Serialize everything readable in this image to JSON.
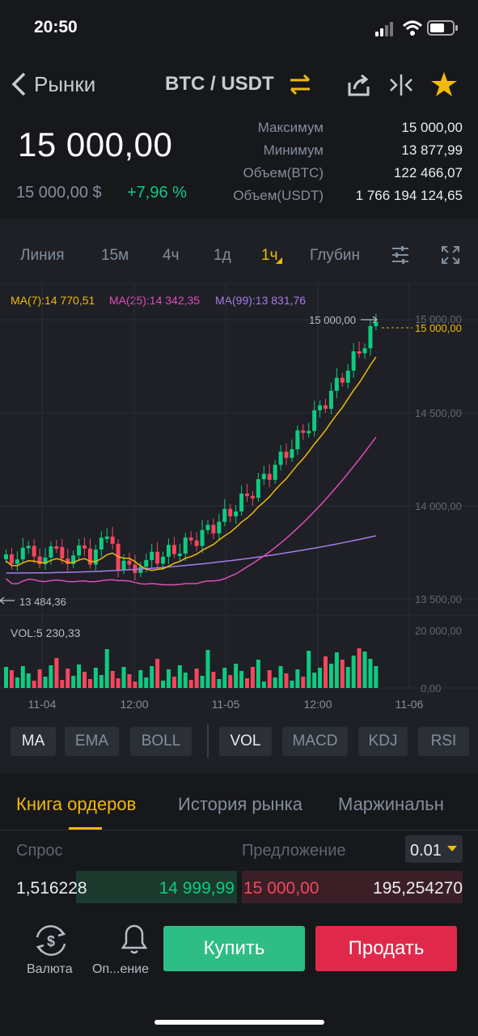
{
  "status_bar": {
    "time": "20:50"
  },
  "nav": {
    "back_label": "Рынки",
    "pair": "BTC / USDT"
  },
  "ticker": {
    "price": "15 000,00",
    "price_usd": "15 000,00 $",
    "change": "+7,96 %",
    "stats": [
      {
        "label": "Максимум",
        "value": "15 000,00"
      },
      {
        "label": "Минимум",
        "value": "13 877,99"
      },
      {
        "label": "Объем(BTC)",
        "value": "122 466,07"
      },
      {
        "label": "Объем(USDT)",
        "value": "1 766 194 124,65"
      }
    ]
  },
  "intervals": [
    "Линия",
    "15м",
    "4ч",
    "1д",
    "1ч",
    "Глубин"
  ],
  "active_interval": "1ч",
  "ma_legend": {
    "ma7": "MA(7):14 770,51",
    "ma25": "MA(25):14 342,35",
    "ma99": "MA(99):13 831,76"
  },
  "chart_data": {
    "type": "candlestick",
    "x_ticks": [
      "11-04",
      "12:00",
      "11-05",
      "12:00",
      "11-06"
    ],
    "y_ticks": [
      "15 000,00",
      "14 500,00",
      "14 000,00",
      "13 500,00"
    ],
    "ylim": [
      13500,
      15000
    ],
    "current_price_label": "15 000,00",
    "high_marker": "15 000,00",
    "low_marker": "13 484,36",
    "volume": {
      "label": "VOL:5 230,33",
      "y_ticks": [
        "20 000,00",
        "0,00"
      ]
    },
    "colors": {
      "up": "#0ecb81",
      "down": "#f6465d",
      "ma7": "#f0b90b",
      "ma25": "#e04cb8",
      "ma99": "#a77be8"
    }
  },
  "indicators": [
    "MA",
    "EMA",
    "BOLL",
    "VOL",
    "MACD",
    "KDJ",
    "RSI"
  ],
  "tabs": [
    "Книга ордеров",
    "История рынка",
    "Маржинальн"
  ],
  "orderbook": {
    "bid_header": "Спрос",
    "ask_header": "Предложение",
    "precision": "0.01",
    "bid_qty": "1,516228",
    "bid_price": "14 999,99",
    "ask_price": "15 000,00",
    "ask_qty": "195,254270"
  },
  "bottom": {
    "currency_label": "Валюта",
    "alert_label": "Оп...ение",
    "buy_label": "Купить",
    "sell_label": "Продать"
  }
}
